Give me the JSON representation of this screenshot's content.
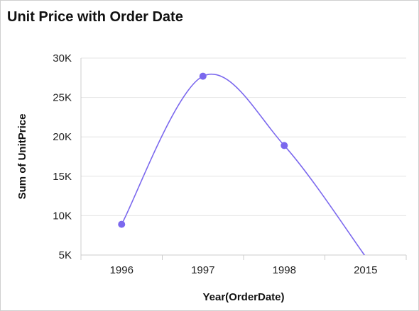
{
  "widget": {
    "title": "Unit Price with Order Date"
  },
  "chart_data": {
    "type": "line",
    "title": "Unit Price with Order Date",
    "xlabel": "Year(OrderDate)",
    "ylabel": "Sum of UnitPrice",
    "categories": [
      "1996",
      "1997",
      "1998",
      "2015"
    ],
    "series": [
      {
        "values": [
          8900,
          27700,
          18900,
          4800
        ],
        "markers": [
          true,
          true,
          true,
          false
        ]
      }
    ],
    "ylim": [
      5000,
      30000
    ],
    "yticks": [
      5000,
      10000,
      15000,
      20000,
      25000,
      30000
    ],
    "ytick_labels": [
      "5K",
      "10K",
      "15K",
      "20K",
      "25K",
      "30K"
    ],
    "grid": true,
    "line_style": "smooth",
    "colors": {
      "series": "#7b68ee",
      "grid": "#e4e4e4",
      "axis": "#cccccc"
    }
  }
}
